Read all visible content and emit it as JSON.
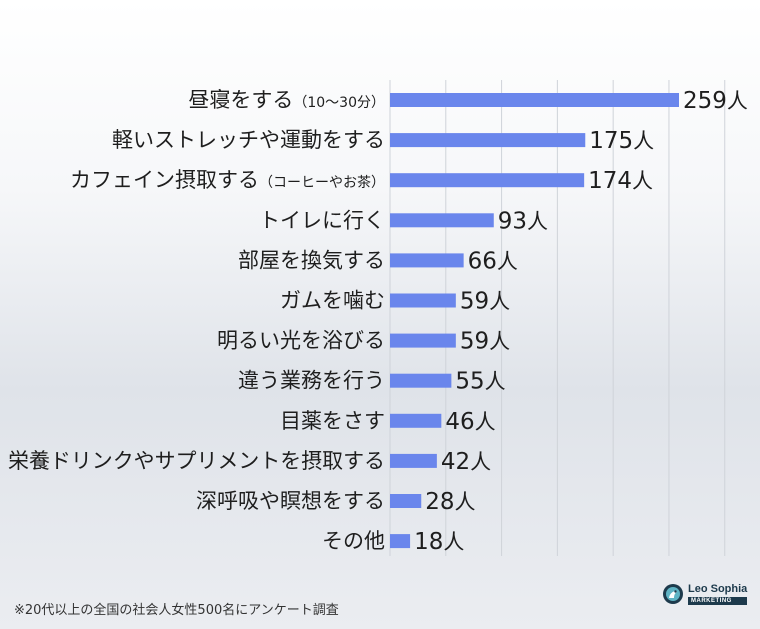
{
  "chart_data": {
    "type": "bar",
    "orientation": "horizontal",
    "title": "",
    "xlabel": "",
    "ylabel": "",
    "unit": "人",
    "xlim": [
      0,
      300
    ],
    "grid": true,
    "legend": "none",
    "bar_color": "#6a86ec",
    "categories": [
      {
        "main": "昼寝をする",
        "note": "（10〜30分）"
      },
      {
        "main": "軽いストレッチや運動をする",
        "note": ""
      },
      {
        "main": "カフェイン摂取する",
        "note": "（コーヒーやお茶）"
      },
      {
        "main": "トイレに行く",
        "note": ""
      },
      {
        "main": "部屋を換気する",
        "note": ""
      },
      {
        "main": "ガムを噛む",
        "note": ""
      },
      {
        "main": "明るい光を浴びる",
        "note": ""
      },
      {
        "main": "違う業務を行う",
        "note": ""
      },
      {
        "main": "目薬をさす",
        "note": ""
      },
      {
        "main": "栄養ドリンクやサプリメントを摂取する",
        "note": ""
      },
      {
        "main": "深呼吸や瞑想をする",
        "note": ""
      },
      {
        "main": "その他",
        "note": ""
      }
    ],
    "values": [
      259,
      175,
      174,
      93,
      66,
      59,
      59,
      55,
      46,
      42,
      28,
      18
    ]
  },
  "footnote": "※20代以上の全国の社会人女性500名にアンケート調査",
  "logo": {
    "name": "Leo Sophia",
    "tagline": "MARKETING"
  }
}
